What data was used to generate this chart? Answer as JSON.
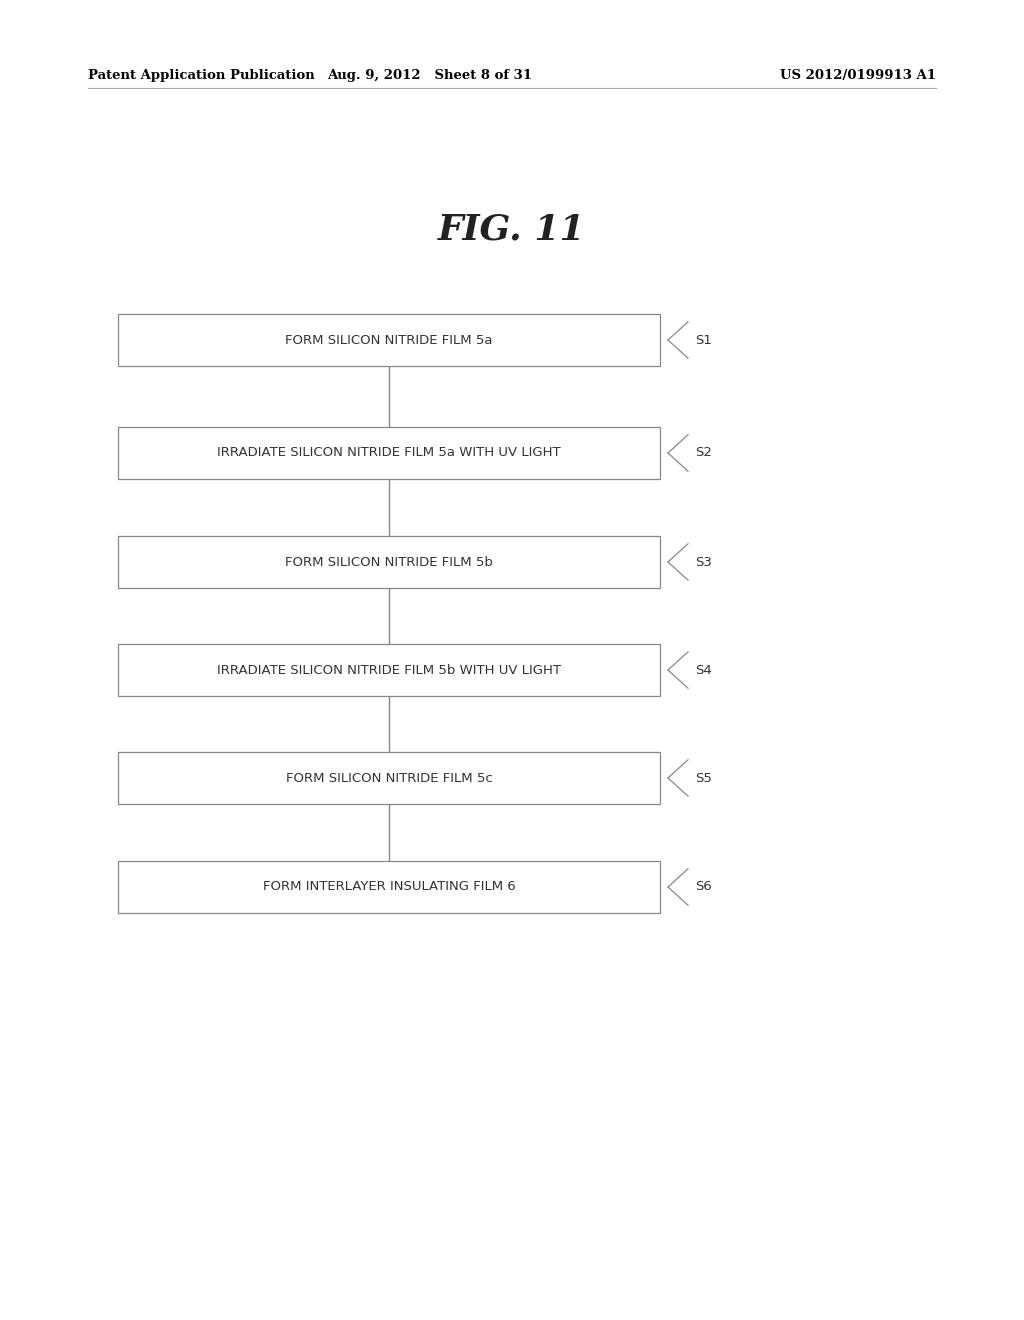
{
  "title": "FIG. 11",
  "header_left": "Patent Application Publication",
  "header_mid": "Aug. 9, 2012   Sheet 8 of 31",
  "header_right": "US 2012/0199913 A1",
  "steps": [
    {
      "label": "FORM SILICON NITRIDE FILM 5a",
      "step": "S1"
    },
    {
      "label": "IRRADIATE SILICON NITRIDE FILM 5a WITH UV LIGHT",
      "step": "S2"
    },
    {
      "label": "FORM SILICON NITRIDE FILM 5b",
      "step": "S3"
    },
    {
      "label": "IRRADIATE SILICON NITRIDE FILM 5b WITH UV LIGHT",
      "step": "S4"
    },
    {
      "label": "FORM SILICON NITRIDE FILM 5c",
      "step": "S5"
    },
    {
      "label": "FORM INTERLAYER INSULATING FILM 6",
      "step": "S6"
    }
  ],
  "box_color": "#ffffff",
  "box_edge_color": "#888888",
  "text_color": "#333333",
  "arrow_color": "#888888",
  "background_color": "#ffffff",
  "header_fontsize": 9.5,
  "title_fontsize": 26,
  "step_fontsize": 9.5,
  "label_fontsize": 9.5
}
